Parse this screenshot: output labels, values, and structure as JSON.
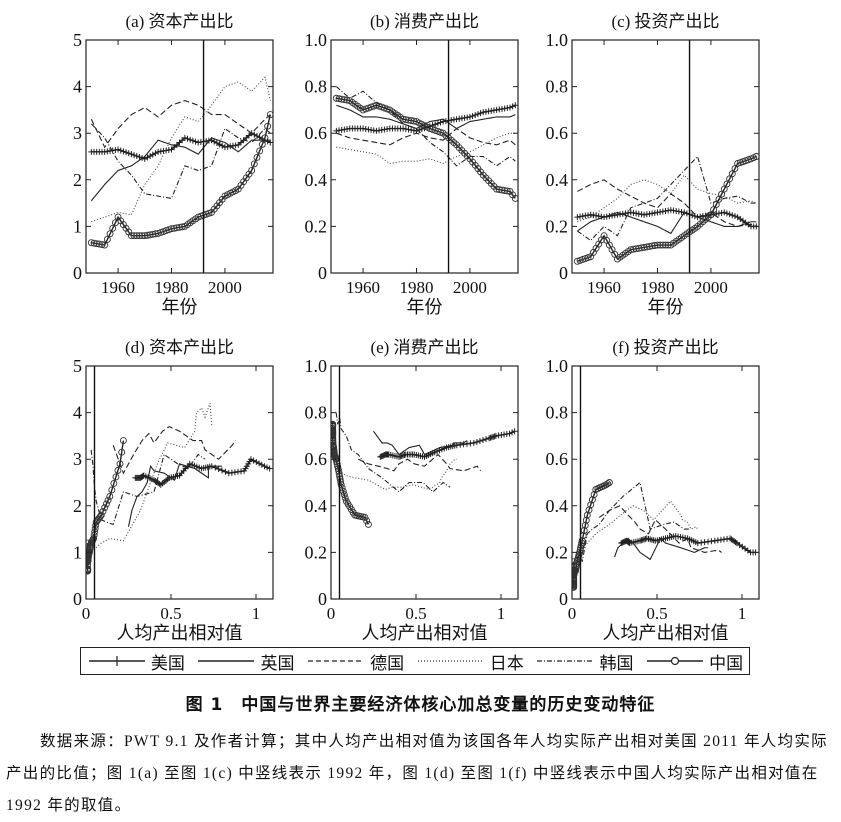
{
  "figure": {
    "caption": "图 1　中国与世界主要经济体核心加总变量的历史变动特征",
    "note": "数据来源：PWT 9.1 及作者计算；其中人均产出相对值为该国各年人均实际产出相对美国 2011 年人均实际产出的比值；图 1(a) 至图 1(c) 中竖线表示 1992 年，图 1(d) 至图 1(f) 中竖线表示中国人均实际产出相对值在 1992 年的取值。"
  },
  "legend": [
    {
      "name": "美国",
      "style": "solid-plus"
    },
    {
      "name": "英国",
      "style": "solid"
    },
    {
      "name": "德国",
      "style": "dashed"
    },
    {
      "name": "日本",
      "style": "dotted"
    },
    {
      "name": "韩国",
      "style": "dashdot"
    },
    {
      "name": "中国",
      "style": "solid-circle"
    }
  ],
  "chart_data": {
    "type": "line",
    "years": [
      1950,
      1955,
      1960,
      1965,
      1970,
      1975,
      1980,
      1985,
      1990,
      1995,
      2000,
      2005,
      2010,
      2015,
      2017
    ],
    "countries": [
      "美国",
      "英国",
      "德国",
      "日本",
      "韩国",
      "中国"
    ],
    "relative_output": {
      "美国": [
        0.29,
        0.32,
        0.34,
        0.4,
        0.44,
        0.49,
        0.55,
        0.61,
        0.68,
        0.74,
        0.84,
        0.93,
        0.97,
        1.05,
        1.08
      ],
      "英国": [
        0.25,
        0.27,
        0.3,
        0.33,
        0.36,
        0.38,
        0.4,
        0.46,
        0.52,
        0.55,
        0.64,
        0.72,
        0.72,
        0.78,
        0.8
      ],
      "德国": [
        0.16,
        0.22,
        0.28,
        0.33,
        0.37,
        0.4,
        0.45,
        0.49,
        0.55,
        0.63,
        0.68,
        0.7,
        0.78,
        0.86,
        0.88
      ],
      "日本": [
        0.06,
        0.09,
        0.14,
        0.22,
        0.32,
        0.36,
        0.42,
        0.48,
        0.58,
        0.64,
        0.65,
        0.68,
        0.7,
        0.73,
        0.74
      ],
      "韩国": [
        0.03,
        0.04,
        0.05,
        0.06,
        0.09,
        0.12,
        0.16,
        0.22,
        0.3,
        0.4,
        0.46,
        0.54,
        0.6,
        0.66,
        0.7
      ],
      "中国": [
        0.01,
        0.01,
        0.01,
        0.01,
        0.01,
        0.012,
        0.015,
        0.02,
        0.03,
        0.045,
        0.06,
        0.09,
        0.14,
        0.2,
        0.22
      ]
    },
    "variables": {
      "capital_output": {
        "美国": [
          2.6,
          2.6,
          2.65,
          2.55,
          2.45,
          2.6,
          2.65,
          2.9,
          2.8,
          2.85,
          2.7,
          2.75,
          3.0,
          2.85,
          2.8
        ],
        "英国": [
          1.55,
          1.9,
          2.2,
          2.3,
          2.5,
          2.85,
          2.75,
          2.7,
          2.55,
          2.9,
          2.8,
          2.6,
          2.85,
          2.85,
          2.85
        ],
        "德国": [
          3.3,
          2.7,
          3.1,
          3.4,
          3.55,
          3.35,
          3.6,
          3.7,
          3.6,
          3.4,
          3.4,
          3.2,
          3.0,
          3.3,
          3.4
        ],
        "日本": [
          1.1,
          1.2,
          1.3,
          1.25,
          1.9,
          2.3,
          2.9,
          3.35,
          3.25,
          3.6,
          4.0,
          4.1,
          3.9,
          4.2,
          3.7
        ],
        "韩国": [
          3.2,
          2.9,
          2.4,
          2.1,
          1.7,
          1.65,
          1.6,
          2.3,
          2.2,
          2.3,
          3.1,
          2.9,
          2.8,
          3.1,
          3.0
        ],
        "中国": [
          0.65,
          0.6,
          1.2,
          0.8,
          0.8,
          0.85,
          0.95,
          1.0,
          1.2,
          1.3,
          1.65,
          1.8,
          2.2,
          2.9,
          3.4
        ]
      },
      "consumption_output": {
        "美国": [
          0.61,
          0.62,
          0.62,
          0.61,
          0.62,
          0.62,
          0.61,
          0.63,
          0.65,
          0.66,
          0.67,
          0.69,
          0.7,
          0.71,
          0.72
        ],
        "英国": [
          0.72,
          0.7,
          0.67,
          0.67,
          0.66,
          0.64,
          0.62,
          0.65,
          0.66,
          0.62,
          0.65,
          0.66,
          0.67,
          0.67,
          0.68
        ],
        "德国": [
          0.6,
          0.58,
          0.57,
          0.56,
          0.55,
          0.58,
          0.6,
          0.58,
          0.57,
          0.62,
          0.58,
          0.56,
          0.55,
          0.57,
          0.55
        ],
        "日本": [
          0.54,
          0.53,
          0.52,
          0.51,
          0.47,
          0.48,
          0.48,
          0.49,
          0.47,
          0.5,
          0.52,
          0.55,
          0.58,
          0.6,
          0.6
        ],
        "韩国": [
          0.8,
          0.75,
          0.78,
          0.73,
          0.7,
          0.64,
          0.62,
          0.56,
          0.52,
          0.46,
          0.5,
          0.5,
          0.46,
          0.5,
          0.48
        ],
        "中国": [
          0.75,
          0.74,
          0.7,
          0.72,
          0.7,
          0.66,
          0.65,
          0.62,
          0.6,
          0.55,
          0.49,
          0.42,
          0.36,
          0.35,
          0.32
        ]
      },
      "investment_output": {
        "美国": [
          0.24,
          0.25,
          0.24,
          0.25,
          0.26,
          0.25,
          0.26,
          0.27,
          0.26,
          0.24,
          0.25,
          0.26,
          0.24,
          0.2,
          0.2
        ],
        "英国": [
          0.18,
          0.22,
          0.24,
          0.26,
          0.24,
          0.22,
          0.2,
          0.17,
          0.26,
          0.24,
          0.22,
          0.2,
          0.2,
          0.22,
          0.22
        ],
        "德国": [
          0.35,
          0.38,
          0.4,
          0.36,
          0.33,
          0.3,
          0.28,
          0.34,
          0.3,
          0.24,
          0.26,
          0.22,
          0.2,
          0.21,
          0.2
        ],
        "日本": [
          0.22,
          0.24,
          0.28,
          0.32,
          0.38,
          0.4,
          0.38,
          0.34,
          0.42,
          0.36,
          0.34,
          0.33,
          0.3,
          0.31,
          0.3
        ],
        "韩国": [
          0.18,
          0.14,
          0.2,
          0.16,
          0.28,
          0.3,
          0.32,
          0.38,
          0.44,
          0.5,
          0.3,
          0.32,
          0.33,
          0.3,
          0.3
        ],
        "中国": [
          0.05,
          0.07,
          0.16,
          0.06,
          0.1,
          0.11,
          0.12,
          0.12,
          0.16,
          0.2,
          0.25,
          0.36,
          0.47,
          0.49,
          0.5
        ]
      }
    },
    "panels": [
      {
        "title": "(a) 资本产出比",
        "variable": "capital_output",
        "x": "years",
        "xlabel": "年份",
        "xlim": [
          1948,
          2018
        ],
        "xticks": [
          1960,
          1980,
          2000
        ],
        "ylim": [
          0,
          5
        ],
        "yticks": [
          0,
          1,
          2,
          3,
          4,
          5
        ],
        "ytick_labels": [
          "0",
          "1",
          "2",
          "3",
          "4",
          "5"
        ],
        "vline": 1992
      },
      {
        "title": "(b) 消费产出比",
        "variable": "consumption_output",
        "x": "years",
        "xlabel": "年份",
        "xlim": [
          1948,
          2018
        ],
        "xticks": [
          1960,
          1980,
          2000
        ],
        "ylim": [
          0,
          1
        ],
        "yticks": [
          0,
          0.2,
          0.4,
          0.6,
          0.8,
          1.0
        ],
        "ytick_labels": [
          "0",
          "0.2",
          "0.4",
          "0.6",
          "0.8",
          "1.0"
        ],
        "vline": 1992
      },
      {
        "title": "(c) 投资产出比",
        "variable": "investment_output",
        "x": "years",
        "xlabel": "年份",
        "xlim": [
          1948,
          2018
        ],
        "xticks": [
          1960,
          1980,
          2000
        ],
        "ylim": [
          0,
          1
        ],
        "yticks": [
          0,
          0.2,
          0.4,
          0.6,
          0.8,
          1.0
        ],
        "ytick_labels": [
          "0",
          "0.2",
          "0.4",
          "0.6",
          "0.8",
          "1.0"
        ],
        "vline": 1992
      },
      {
        "title": "(d) 资本产出比",
        "variable": "capital_output",
        "x": "relative_output",
        "xlabel": "人均产出相对值",
        "xlim": [
          0,
          1.1
        ],
        "xticks": [
          0,
          0.5,
          1
        ],
        "xtick_labels": [
          "0",
          "0.5",
          "1"
        ],
        "ylim": [
          0,
          5
        ],
        "yticks": [
          0,
          1,
          2,
          3,
          4,
          5
        ],
        "ytick_labels": [
          "0",
          "1",
          "2",
          "3",
          "4",
          "5"
        ],
        "vline": 0.05
      },
      {
        "title": "(e) 消费产出比",
        "variable": "consumption_output",
        "x": "relative_output",
        "xlabel": "人均产出相对值",
        "xlim": [
          0,
          1.1
        ],
        "xticks": [
          0,
          0.5,
          1
        ],
        "xtick_labels": [
          "0",
          "0.5",
          "1"
        ],
        "ylim": [
          0,
          1
        ],
        "yticks": [
          0,
          0.2,
          0.4,
          0.6,
          0.8,
          1.0
        ],
        "ytick_labels": [
          "0",
          "0.2",
          "0.4",
          "0.6",
          "0.8",
          "1.0"
        ],
        "vline": 0.05
      },
      {
        "title": "(f) 投资产出比",
        "variable": "investment_output",
        "x": "relative_output",
        "xlabel": "人均产出相对值",
        "xlim": [
          0,
          1.1
        ],
        "xticks": [
          0,
          0.5,
          1
        ],
        "xtick_labels": [
          "0",
          "0.5",
          "1"
        ],
        "ylim": [
          0,
          1
        ],
        "yticks": [
          0,
          0.2,
          0.4,
          0.6,
          0.8,
          1.0
        ],
        "ytick_labels": [
          "0",
          "0.2",
          "0.4",
          "0.6",
          "0.8",
          "1.0"
        ],
        "vline": 0.05
      }
    ]
  }
}
